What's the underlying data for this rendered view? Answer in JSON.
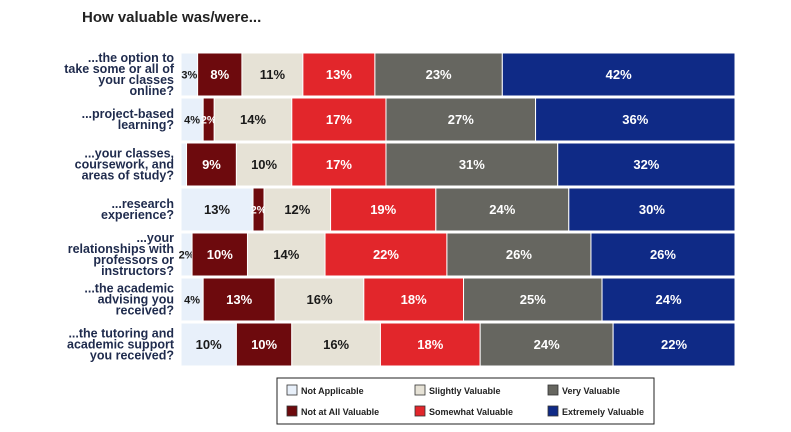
{
  "chart_data": {
    "type": "bar",
    "orientation": "horizontal",
    "stacked": true,
    "title": "How valuable was/were...",
    "categories": [
      "...the option to take some or all of your classes online?",
      "...project-based learning?",
      "...your classes, coursework, and areas of study?",
      "...research experience?",
      "...your relationships with professors or instructors?",
      "...the academic advising you received?",
      "...the tutoring and academic support you received?"
    ],
    "category_lines": [
      [
        "...the option to",
        "take some or all of",
        "your classes",
        "online?"
      ],
      [
        "...project-based",
        "learning?"
      ],
      [
        "...your classes,",
        "coursework, and",
        "areas of study?"
      ],
      [
        "...research",
        "experience?"
      ],
      [
        "...your",
        "relationships with",
        "professors or",
        "instructors?"
      ],
      [
        "...the academic",
        "advising you",
        "received?"
      ],
      [
        "...the tutoring and",
        "academic support",
        "you received?"
      ]
    ],
    "series": [
      {
        "name": "Not Applicable",
        "color": "#e8f0fa",
        "text_color": "#1a1a1a",
        "values": [
          3,
          4,
          1,
          13,
          2,
          4,
          10
        ]
      },
      {
        "name": "Not at All Valuable",
        "color": "#6d0a0d",
        "text_color": "#ffffff",
        "values": [
          8,
          2,
          9,
          2,
          10,
          13,
          10
        ]
      },
      {
        "name": "Slightly Valuable",
        "color": "#e6e2d6",
        "text_color": "#1a1a1a",
        "values": [
          11,
          14,
          10,
          12,
          14,
          16,
          16
        ]
      },
      {
        "name": "Somewhat Valuable",
        "color": "#e2262b",
        "text_color": "#ffffff",
        "values": [
          13,
          17,
          17,
          19,
          22,
          18,
          18
        ]
      },
      {
        "name": "Very Valuable",
        "color": "#666660",
        "text_color": "#ffffff",
        "values": [
          23,
          27,
          31,
          24,
          26,
          25,
          24
        ]
      },
      {
        "name": "Extremely Valuable",
        "color": "#0f2a86",
        "text_color": "#ffffff",
        "values": [
          42,
          36,
          32,
          30,
          26,
          24,
          22
        ]
      }
    ],
    "data_labels": [
      [
        "3%",
        "8%",
        "11%",
        "13%",
        "23%",
        "42%"
      ],
      [
        "4%",
        "2%",
        "14%",
        "17%",
        "27%",
        "36%"
      ],
      [
        "",
        "9%",
        "10%",
        "17%",
        "31%",
        "32%"
      ],
      [
        "13%",
        "2%",
        "12%",
        "19%",
        "24%",
        "30%"
      ],
      [
        "2%",
        "10%",
        "14%",
        "22%",
        "26%",
        "26%"
      ],
      [
        "4%",
        "13%",
        "16%",
        "18%",
        "25%",
        "24%"
      ],
      [
        "10%",
        "10%",
        "16%",
        "18%",
        "24%",
        "22%"
      ]
    ],
    "legend": {
      "position": "bottom",
      "entries": [
        "Not Applicable",
        "Slightly Valuable",
        "Very Valuable",
        "Not at All Valuable",
        "Somewhat Valuable",
        "Extremely Valuable"
      ]
    },
    "xlim": [
      0,
      100
    ],
    "grid": false
  }
}
